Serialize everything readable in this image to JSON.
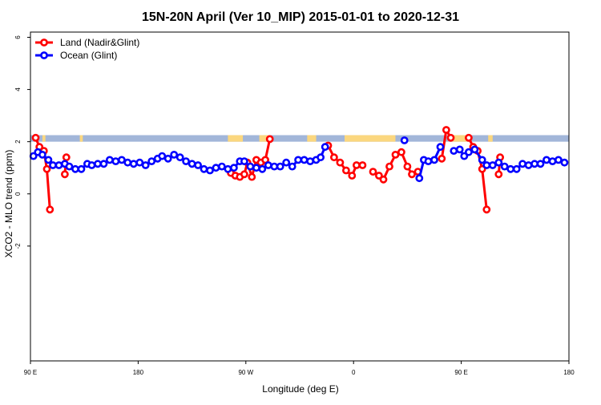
{
  "chart_data": {
    "type": "line",
    "title": "15N-20N April (Ver 10_MIP)   2015-01-01 to 2020-12-31",
    "xlabel": "Longitude (deg E)",
    "ylabel": "XCO2 - MLO trend (ppm)",
    "xlim": [
      90,
      450
    ],
    "ylim": [
      -6.4,
      6.2
    ],
    "x_ticks": [
      {
        "value": 90,
        "label": "90 E"
      },
      {
        "value": 162,
        "label": "180"
      },
      {
        "value": 234,
        "label": "90 W"
      },
      {
        "value": 306,
        "label": "0"
      },
      {
        "value": 378,
        "label": "90 E"
      },
      {
        "value": 450,
        "label": "180"
      }
    ],
    "y_ticks": [
      {
        "value": -2,
        "label": "-2"
      },
      {
        "value": 0,
        "label": "0"
      },
      {
        "value": 2,
        "label": "2"
      },
      {
        "value": 4,
        "label": "4"
      },
      {
        "value": 6,
        "label": "6"
      }
    ],
    "legend": {
      "position": "top-left"
    },
    "land_mask": {
      "y_range": [
        2.0,
        2.25
      ],
      "ocean_color": "#a2b6d9",
      "land_color": "#fbd77f",
      "land_segments": [
        [
          98,
          100
        ],
        [
          123,
          125
        ],
        [
          222,
          232
        ],
        [
          243,
          249
        ],
        [
          275,
          281
        ],
        [
          300,
          334
        ],
        [
          372,
          384
        ],
        [
          396,
          399
        ]
      ]
    },
    "series": [
      {
        "name": "Land (Nadir&Glint)",
        "color": "#ff0000",
        "segments": [
          [
            [
              93.5,
              2.15
            ],
            [
              96,
              1.8
            ],
            [
              99,
              1.65
            ],
            [
              101,
              0.95
            ],
            [
              103,
              -0.6
            ]
          ],
          [
            [
              114,
              1.4
            ],
            [
              113,
              0.75
            ]
          ],
          [
            [
              224,
              0.8
            ],
            [
              227,
              0.7
            ],
            [
              230,
              0.65
            ],
            [
              233,
              0.75
            ],
            [
              235,
              1.2
            ],
            [
              238,
              0.65
            ],
            [
              241,
              1.3
            ],
            [
              244,
              1.2
            ],
            [
              247,
              1.3
            ],
            [
              250,
              2.1
            ]
          ],
          [
            [
              289,
              1.85
            ],
            [
              293,
              1.4
            ],
            [
              297,
              1.2
            ],
            [
              301,
              0.9
            ],
            [
              305,
              0.7
            ],
            [
              308,
              1.1
            ],
            [
              312,
              1.1
            ]
          ],
          [
            [
              319,
              0.85
            ],
            [
              323,
              0.7
            ],
            [
              326,
              0.55
            ],
            [
              330,
              1.05
            ],
            [
              334,
              1.5
            ],
            [
              338,
              1.6
            ],
            [
              342,
              1.05
            ],
            [
              345,
              0.75
            ],
            [
              349,
              0.85
            ]
          ],
          [
            [
              365,
              1.35
            ],
            [
              368,
              2.45
            ],
            [
              371,
              2.15
            ]
          ],
          [
            [
              383,
              2.15
            ],
            [
              386,
              1.8
            ],
            [
              389,
              1.65
            ],
            [
              392,
              0.95
            ],
            [
              395,
              -0.6
            ]
          ],
          [
            [
              404,
              1.4
            ],
            [
              403,
              0.75
            ]
          ]
        ]
      },
      {
        "name": "Ocean (Glint)",
        "color": "#0000ff",
        "segments": [
          [
            [
              92,
              1.45
            ],
            [
              95,
              1.6
            ],
            [
              98,
              1.5
            ],
            [
              102,
              1.3
            ],
            [
              105,
              1.1
            ],
            [
              109,
              1.1
            ],
            [
              113,
              1.15
            ],
            [
              116,
              1.05
            ],
            [
              120,
              0.95
            ],
            [
              124,
              0.95
            ],
            [
              128,
              1.15
            ],
            [
              131,
              1.1
            ],
            [
              135,
              1.15
            ],
            [
              139,
              1.15
            ],
            [
              143,
              1.3
            ],
            [
              147,
              1.25
            ],
            [
              151,
              1.3
            ],
            [
              155,
              1.2
            ],
            [
              159,
              1.15
            ],
            [
              163,
              1.2
            ],
            [
              167,
              1.1
            ],
            [
              171,
              1.25
            ],
            [
              175,
              1.35
            ],
            [
              178,
              1.45
            ],
            [
              182,
              1.35
            ],
            [
              186,
              1.5
            ],
            [
              190,
              1.4
            ],
            [
              194,
              1.25
            ],
            [
              198,
              1.15
            ],
            [
              202,
              1.1
            ],
            [
              206,
              0.95
            ],
            [
              210,
              0.9
            ],
            [
              214,
              1.0
            ],
            [
              218,
              1.05
            ],
            [
              222,
              0.95
            ],
            [
              226,
              1.0
            ],
            [
              230,
              1.25
            ],
            [
              233,
              1.25
            ],
            [
              237,
              1.05
            ],
            [
              241,
              1.0
            ],
            [
              245,
              0.95
            ],
            [
              249,
              1.1
            ],
            [
              253,
              1.05
            ],
            [
              257,
              1.05
            ],
            [
              261,
              1.2
            ],
            [
              265,
              1.05
            ],
            [
              269,
              1.3
            ],
            [
              273,
              1.3
            ],
            [
              277,
              1.25
            ],
            [
              281,
              1.3
            ],
            [
              284,
              1.4
            ],
            [
              287,
              1.8
            ]
          ],
          [
            [
              340,
              2.05
            ]
          ],
          [
            [
              350,
              0.6
            ],
            [
              353,
              1.3
            ],
            [
              356,
              1.25
            ],
            [
              360,
              1.3
            ],
            [
              364,
              1.8
            ]
          ],
          [
            [
              373,
              1.65
            ],
            [
              377,
              1.7
            ],
            [
              380,
              1.45
            ],
            [
              383,
              1.6
            ],
            [
              387,
              1.7
            ],
            [
              392,
              1.3
            ],
            [
              395,
              1.1
            ],
            [
              399,
              1.1
            ],
            [
              403,
              1.2
            ],
            [
              407,
              1.05
            ],
            [
              411,
              0.95
            ],
            [
              415,
              0.95
            ],
            [
              419,
              1.15
            ],
            [
              423,
              1.1
            ],
            [
              427,
              1.15
            ],
            [
              431,
              1.15
            ],
            [
              435,
              1.3
            ],
            [
              439,
              1.25
            ],
            [
              443,
              1.3
            ],
            [
              447,
              1.2
            ]
          ]
        ]
      }
    ]
  }
}
